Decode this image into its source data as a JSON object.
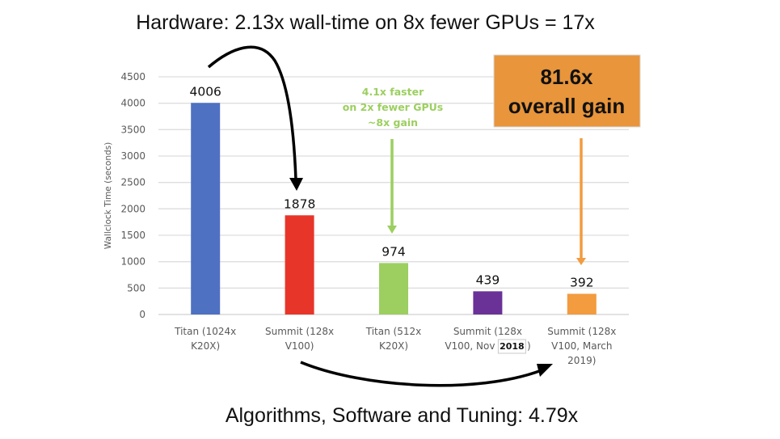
{
  "chart_data": {
    "type": "bar",
    "title": "Hardware: 2.13x wall-time on 8x fewer GPUs = 17x",
    "bottom_caption": "Algorithms, Software and Tuning: 4.79x",
    "xlabel": "",
    "ylabel": "Wallclock Time (seconds)",
    "ylim": [
      0,
      4500
    ],
    "yticks": [
      0,
      500,
      1000,
      1500,
      2000,
      2500,
      3000,
      3500,
      4000,
      4500
    ],
    "grid": true,
    "categories": [
      [
        "Titan (1024x",
        "K20X)"
      ],
      [
        "Summit (128x",
        "V100)"
      ],
      [
        "Titan (512x",
        "K20X)"
      ],
      [
        "Summit (128x",
        "V100, Nov",
        "2018",
        ")"
      ],
      [
        "Summit (128x",
        "V100, March",
        "2019)"
      ]
    ],
    "values": [
      4006,
      1878,
      974,
      439,
      392
    ],
    "data_labels": [
      "4006",
      "1878",
      "974",
      "439",
      "392"
    ],
    "colors": [
      "#4f71c2",
      "#e8352a",
      "#9ccf60",
      "#6a3297",
      "#f29b3f"
    ],
    "annotations": {
      "green_note": [
        "4.1x faster",
        "on 2x fewer GPUs",
        "~8x gain"
      ],
      "gain_box": [
        "81.6x",
        "overall gain"
      ],
      "gain_box_color": "#e8953b",
      "green_arrow_color": "#9ccf60",
      "orange_arrow_color": "#f29b3f"
    }
  }
}
